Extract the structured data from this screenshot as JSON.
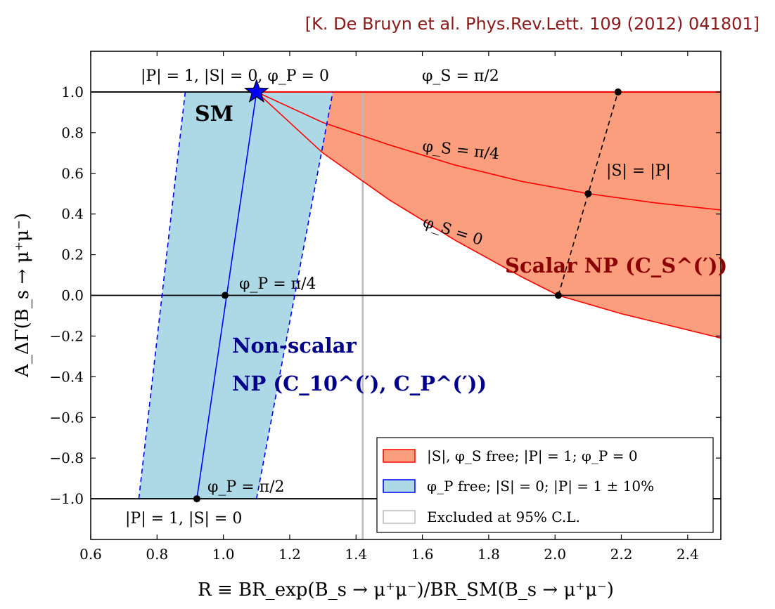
{
  "citation": "[K. De Bruyn et al. Phys.Rev.Lett. 109 (2012) 041801]",
  "colors": {
    "scalar_fill": "#fa9e7d",
    "scalar_line": "#ff0000",
    "nonscalar_fill": "#add8e6",
    "nonscalar_line": "#0000ff",
    "excluded": "#bbbbbb",
    "scalar_label": "#8b0000",
    "nonscalar_label": "#00008b",
    "citation": "#8b1a1a"
  },
  "chart_data": {
    "type": "line",
    "xlabel": "R ≡ BR_exp(B_s → μ⁺μ⁻)/BR_SM(B_s → μ⁺μ⁻)",
    "ylabel": "A_ΔΓ(B_s → μ⁺μ⁻)",
    "xlim": [
      0.6,
      2.5
    ],
    "ylim": [
      -1.2,
      1.2
    ],
    "xticks": [
      "0.6",
      "0.8",
      "1.0",
      "1.2",
      "1.4",
      "1.6",
      "1.8",
      "2.0",
      "2.2",
      "2.4"
    ],
    "xtick_values": [
      0.6,
      0.8,
      1.0,
      1.2,
      1.4,
      1.6,
      1.8,
      2.0,
      2.2,
      2.4
    ],
    "yticks": [
      "1.0",
      "0.8",
      "0.6",
      "0.4",
      "0.2",
      "0.0",
      "−0.2",
      "−0.4",
      "−0.6",
      "−0.8",
      "−1.0"
    ],
    "ytick_values": [
      1.0,
      0.8,
      0.6,
      0.4,
      0.2,
      0.0,
      -0.2,
      -0.4,
      -0.6,
      -0.8,
      -1.0
    ],
    "hlines": [
      1.0,
      0.0,
      -1.0
    ],
    "excluded_x": 1.42,
    "sm_point": {
      "x": 1.1,
      "y": 1.0
    },
    "nonscalar_band": {
      "center": [
        [
          0.92,
          -1.0
        ],
        [
          1.1,
          1.0
        ]
      ],
      "left": [
        [
          0.745,
          -1.0
        ],
        [
          0.885,
          1.0
        ]
      ],
      "right": [
        [
          1.1,
          -1.0
        ],
        [
          1.33,
          1.0
        ]
      ]
    },
    "curves": [
      {
        "name": "φ_S = π/4",
        "points": [
          [
            1.1,
            1.0
          ],
          [
            1.3,
            0.85
          ],
          [
            1.5,
            0.74
          ],
          [
            1.7,
            0.64
          ],
          [
            1.9,
            0.56
          ],
          [
            2.1,
            0.5
          ],
          [
            2.3,
            0.455
          ],
          [
            2.5,
            0.42
          ]
        ]
      },
      {
        "name": "φ_S = 0",
        "points": [
          [
            1.1,
            1.0
          ],
          [
            1.3,
            0.7
          ],
          [
            1.5,
            0.47
          ],
          [
            1.7,
            0.27
          ],
          [
            1.9,
            0.09
          ],
          [
            2.01,
            0.0
          ],
          [
            2.2,
            -0.09
          ],
          [
            2.5,
            -0.21
          ]
        ]
      }
    ],
    "dashed_line": [
      [
        2.01,
        0.0
      ],
      [
        2.1,
        0.5
      ],
      [
        2.19,
        1.0
      ]
    ],
    "marked_points": [
      {
        "x": 0.92,
        "y": -1.0
      },
      {
        "x": 1.005,
        "y": 0.0
      },
      {
        "x": 2.01,
        "y": 0.0
      },
      {
        "x": 2.1,
        "y": 0.5
      },
      {
        "x": 2.19,
        "y": 1.0
      }
    ],
    "annotations": {
      "top_left": "|P| = 1, |S| = 0, φ_P = 0",
      "top_right": "φ_S = π/2",
      "sm": "SM",
      "phi_s_pi4": "φ_S = π/4",
      "s_eq_p": "|S| = |P|",
      "phi_s_0": "φ_S = 0",
      "scalar_np": "Scalar NP (C_S^(′))",
      "phi_p_pi4": "φ_P = π/4",
      "nonscalar_1": "Non-scalar",
      "nonscalar_2": "NP (C_10^(′), C_P^(′))",
      "phi_p_pi2": "φ_P = π/2",
      "bottom_left": "|P| = 1, |S| = 0"
    },
    "legend": {
      "placement": "bottom-right",
      "entries": [
        "|S|,  φ_S free;  |P| = 1;  φ_P = 0",
        "φ_P free;  |S| = 0; |P| = 1 ± 10%",
        "Excluded at 95% C.L."
      ]
    }
  }
}
